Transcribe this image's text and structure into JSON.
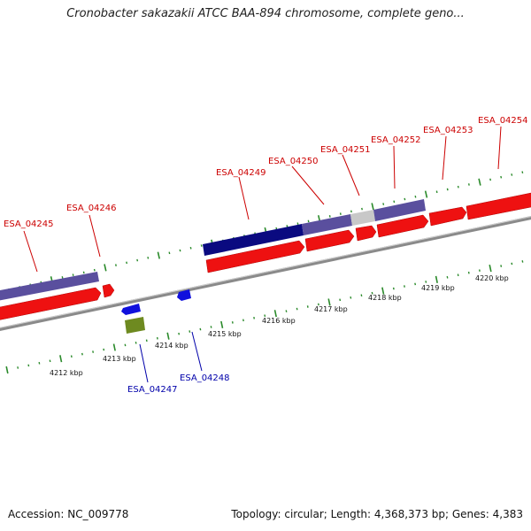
{
  "title": "Cronobacter sakazakii ATCC BAA-894 chromosome, complete geno...",
  "footer": {
    "accession": "Accession: NC_009778",
    "summary": "Topology: circular; Length: 4,368,373 bp; Genes: 4,383"
  },
  "colors": {
    "forward_cds": "#ee1111",
    "feature_purple": "#5a4f9e",
    "feature_navy": "#0a0a80",
    "feature_grey": "#c8c8c8",
    "reverse_cds": "#1010dd",
    "reverse_olive": "#6e8a20",
    "tick_green": "#2a8a2a",
    "label_red": "#cc0000",
    "label_blue": "#0000aa"
  },
  "kbp_labels": [
    "4212 kbp",
    "4213 kbp",
    "4214 kbp",
    "4215 kbp",
    "4216 kbp",
    "4217 kbp",
    "4218 kbp",
    "4219 kbp",
    "4220 kbp"
  ],
  "gene_labels_top": [
    "ESA_04245",
    "ESA_04246",
    "ESA_04249",
    "ESA_04250",
    "ESA_04251",
    "ESA_04252",
    "ESA_04253",
    "ESA_04254"
  ],
  "gene_labels_bottom": [
    "ESA_04247",
    "ESA_04248"
  ]
}
